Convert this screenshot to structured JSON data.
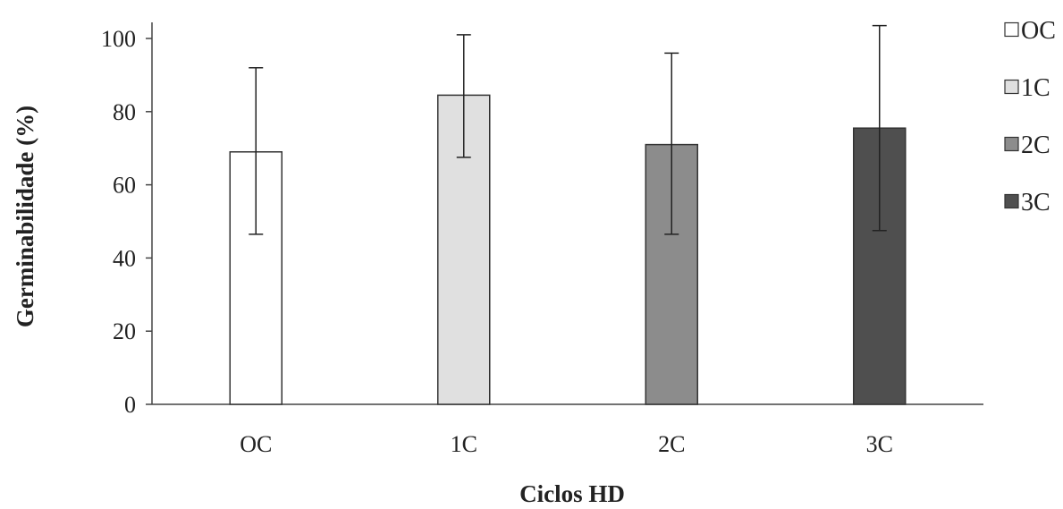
{
  "chart_data": {
    "type": "bar",
    "title": "",
    "xlabel": "Ciclos HD",
    "ylabel": "Germinabilidade (%)",
    "categories": [
      "OC",
      "1C",
      "2C",
      "3C"
    ],
    "values": [
      69,
      84.5,
      71,
      75.5
    ],
    "error_low": [
      46.5,
      67.5,
      46.5,
      47.5
    ],
    "error_high": [
      92,
      101,
      96,
      103.5
    ],
    "colors": [
      "#ffffff",
      "#e0e0e0",
      "#8c8c8c",
      "#4f4f4f"
    ],
    "ylim": [
      0,
      100
    ],
    "yticks": [
      0,
      20,
      40,
      60,
      80,
      100
    ],
    "grid": false,
    "legend": {
      "position": "right",
      "entries": [
        "OC",
        "1C",
        "2C",
        "3C"
      ]
    }
  }
}
